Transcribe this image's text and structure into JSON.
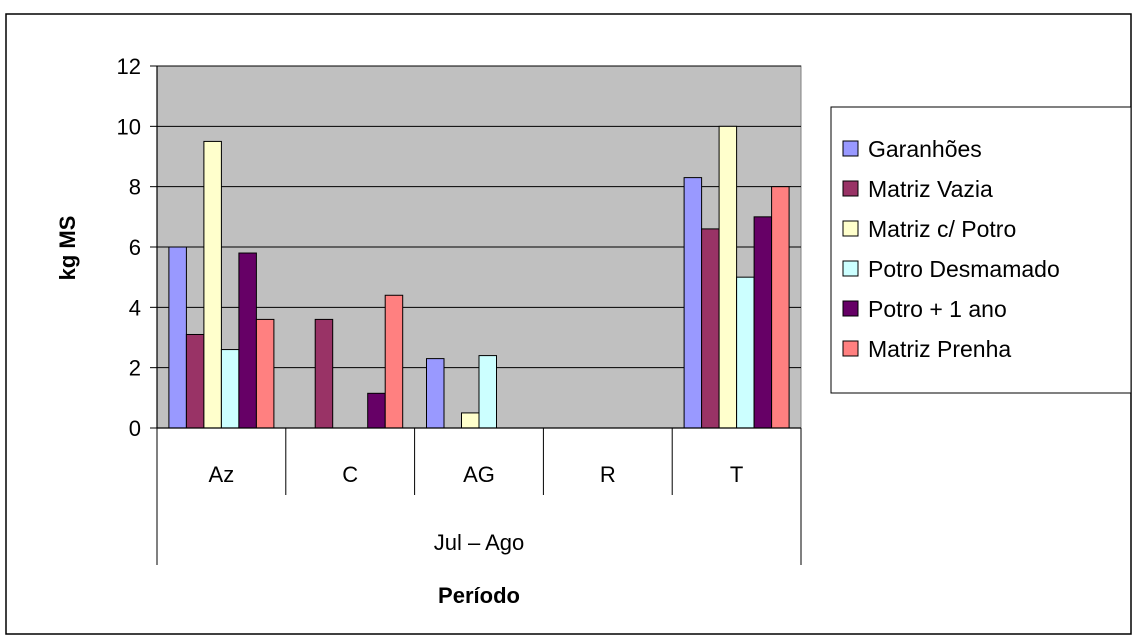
{
  "chart_data": {
    "type": "bar",
    "title": "",
    "xlabel": "Período",
    "ylabel": "kg MS",
    "group_label": "Jul – Ago",
    "categories": [
      "Az",
      "C",
      "AG",
      "R",
      "T"
    ],
    "yticks": [
      "0",
      "2",
      "4",
      "6",
      "8",
      "10",
      "12"
    ],
    "ylim": [
      0,
      12
    ],
    "grid": true,
    "legend_position": "right",
    "series": [
      {
        "name": "Garanhões",
        "color": "#9999ff",
        "values": [
          6.0,
          0,
          2.3,
          0,
          8.3
        ]
      },
      {
        "name": "Matriz Vazia",
        "color": "#993366",
        "values": [
          3.1,
          3.6,
          0,
          0,
          6.6
        ]
      },
      {
        "name": "Matriz c/ Potro",
        "color": "#ffffcc",
        "values": [
          9.5,
          0,
          0.5,
          0,
          10.0
        ]
      },
      {
        "name": "Potro Desmamado",
        "color": "#ccffff",
        "values": [
          2.6,
          0,
          2.4,
          0,
          5.0
        ]
      },
      {
        "name": "Potro + 1 ano",
        "color": "#660066",
        "values": [
          5.8,
          1.15,
          0,
          0,
          7.0
        ]
      },
      {
        "name": "Matriz Prenha",
        "color": "#ff8080",
        "values": [
          3.6,
          4.4,
          0,
          0,
          8.0
        ]
      }
    ],
    "plot_background": "#c0c0c0"
  }
}
